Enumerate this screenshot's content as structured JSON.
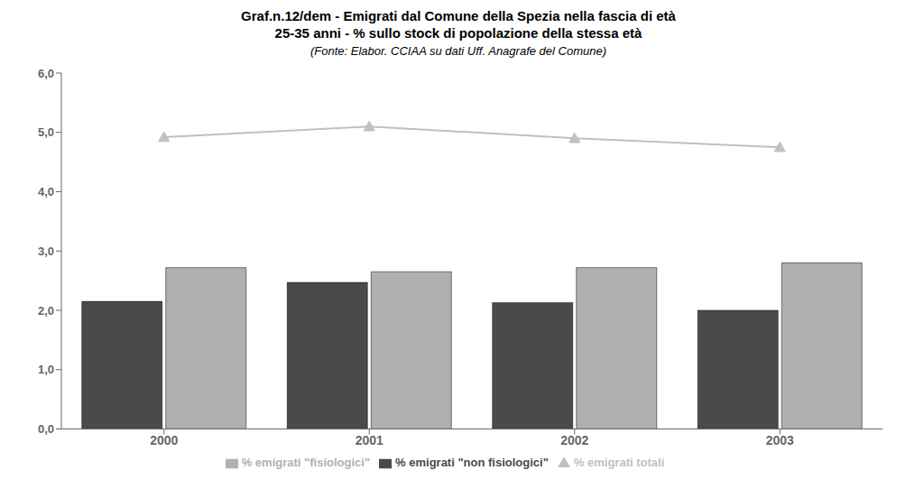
{
  "chart_data": {
    "type": "bar",
    "title": "Graf.n.12/dem - Emigrati dal Comune della Spezia nella fascia di età\n25-35 anni - % sullo stock di popolazione della stessa età",
    "subtitle": "(Fonte: Elabor. CCIAA su dati Uff. Anagrafe del Comune)",
    "categories": [
      "2000",
      "2001",
      "2002",
      "2003"
    ],
    "series": [
      {
        "name": "% emigrati \"non fisiologici\"",
        "type": "bar",
        "color": "#4a4a4a",
        "values": [
          2.15,
          2.47,
          2.13,
          2.0
        ]
      },
      {
        "name": "% emigrati \"fisiologici\"",
        "type": "bar",
        "color": "#b0b0b0",
        "values": [
          2.72,
          2.65,
          2.72,
          2.8
        ]
      },
      {
        "name": "% emigrati totali",
        "type": "line",
        "color": "#c0c0c0",
        "marker": "triangle",
        "values": [
          4.92,
          5.1,
          4.9,
          4.75
        ]
      }
    ],
    "ylim": [
      0,
      6.0
    ],
    "yticks": [
      {
        "value": 0.0,
        "label": "0,0"
      },
      {
        "value": 1.0,
        "label": "1,0"
      },
      {
        "value": 2.0,
        "label": "2,0"
      },
      {
        "value": 3.0,
        "label": "3,0"
      },
      {
        "value": 4.0,
        "label": "4,0"
      },
      {
        "value": 5.0,
        "label": "5,0"
      },
      {
        "value": 6.0,
        "label": "6,0"
      }
    ],
    "grid": false,
    "legend": "bottom"
  }
}
